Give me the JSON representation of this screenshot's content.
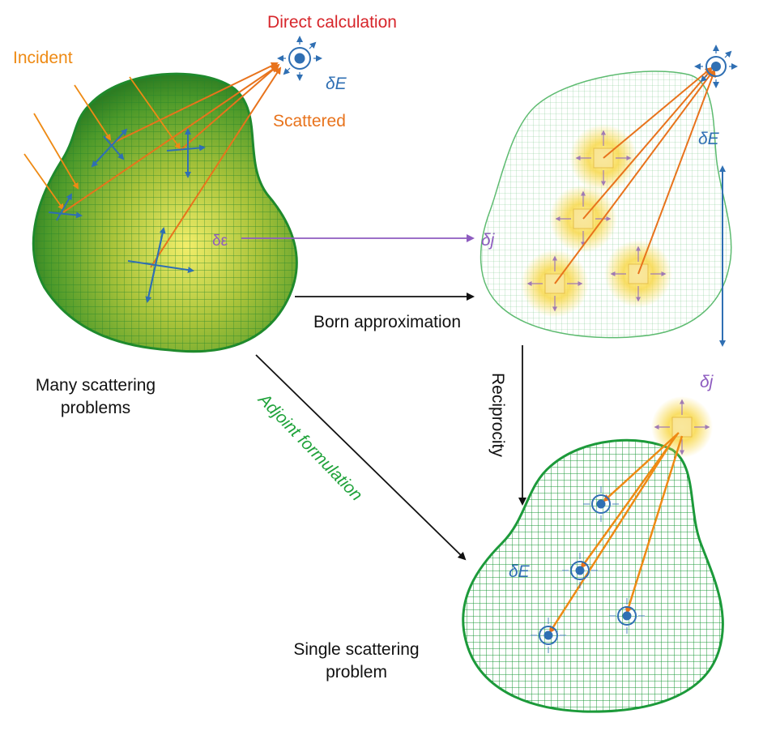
{
  "labels": {
    "direct_calculation": "Direct calculation",
    "incident": "Incident",
    "scattered": "Scattered",
    "delta_E_top": "δE",
    "delta_E_right": "δE",
    "delta_E_bottom": "δE",
    "delta_eps": "δε",
    "delta_j_mid": "δj",
    "delta_j_bottom": "δj",
    "born_approximation": "Born approximation",
    "reciprocity": "Reciprocity",
    "adjoint_formulation": "Adjoint formulation",
    "many_scattering_line1": "Many scattering",
    "many_scattering_line2": "problems",
    "single_scattering_line1": "Single scattering",
    "single_scattering_line2": "problem"
  },
  "colors": {
    "red": "#d7262b",
    "orange": "#ee8a14",
    "scatter_orange": "#e8731c",
    "blue": "#2f6fb3",
    "purple": "#8e5cc0",
    "green_text": "#1fa23a",
    "mesh_green": "#1c9a3a",
    "black": "#111111"
  }
}
